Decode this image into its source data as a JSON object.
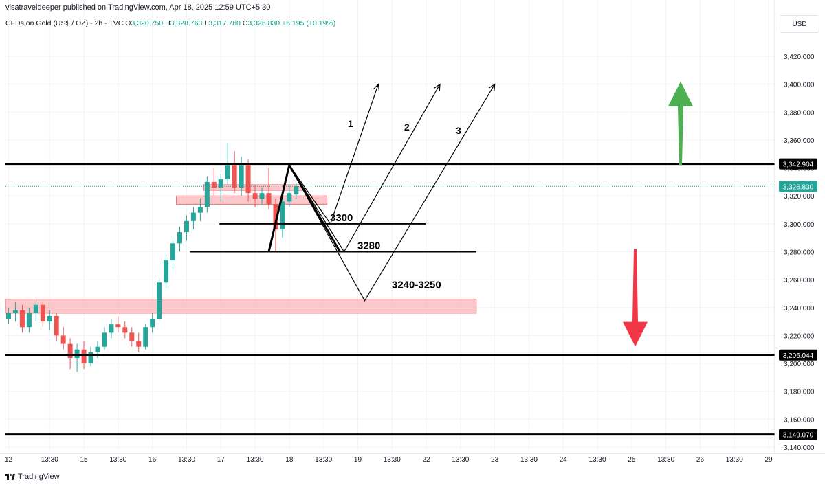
{
  "header": {
    "published_by": "visatraveldeeper published on TradingView.com, Apr 18, 2025 12:59 UTC+5:30"
  },
  "symbol": {
    "name": "CFDs on Gold (US$ / OZ) · 2h · TVC",
    "open_label": "O",
    "open": "3,320.750",
    "high_label": "H",
    "high": "3,328.763",
    "low_label": "L",
    "low": "3,317.760",
    "close_label": "C",
    "close": "3,326.830",
    "change": "+6.195 (+0.19%)"
  },
  "currency": "USD",
  "footer": {
    "brand": "TradingView"
  },
  "colors": {
    "up": "#26a69a",
    "down": "#ef5350",
    "zone_fill": "#f8b4b8",
    "zone_stroke": "#e57373",
    "green_arrow": "#4caf50",
    "red_arrow": "#f23645",
    "last_price": "#26a69a"
  },
  "chart_data": {
    "type": "candlestick",
    "ylim": [
      3132,
      3436
    ],
    "y_ticks": [
      3140,
      3160,
      3180,
      3200,
      3220,
      3240,
      3260,
      3280,
      3300,
      3320,
      3340,
      3360,
      3380,
      3400,
      3420
    ],
    "y_tick_labels": [
      "3,140.000",
      "3,160.000",
      "3,180.000",
      "3,200.000",
      "3,220.000",
      "3,240.000",
      "3,260.000",
      "3,280.000",
      "3,300.000",
      "3,320.000",
      "3,340.000",
      "3,360.000",
      "3,380.000",
      "3,400.000",
      "3,420.000"
    ],
    "x_ticks": [
      {
        "i": 0,
        "label": "12"
      },
      {
        "i": 6,
        "label": "13:30"
      },
      {
        "i": 11,
        "label": "15"
      },
      {
        "i": 16,
        "label": "13:30"
      },
      {
        "i": 21,
        "label": "16"
      },
      {
        "i": 26,
        "label": "13:30"
      },
      {
        "i": 31,
        "label": "17"
      },
      {
        "i": 36,
        "label": "13:30"
      },
      {
        "i": 41,
        "label": "18"
      },
      {
        "i": 46,
        "label": "13:30"
      },
      {
        "i": 51,
        "label": "19"
      },
      {
        "i": 56,
        "label": "13:30"
      },
      {
        "i": 61,
        "label": "22"
      },
      {
        "i": 66,
        "label": "13:30"
      },
      {
        "i": 71,
        "label": "23"
      },
      {
        "i": 76,
        "label": "13:30"
      },
      {
        "i": 81,
        "label": "24"
      },
      {
        "i": 86,
        "label": "13:30"
      },
      {
        "i": 91,
        "label": "25"
      },
      {
        "i": 96,
        "label": "13:30"
      },
      {
        "i": 101,
        "label": "26"
      },
      {
        "i": 106,
        "label": "13:30"
      },
      {
        "i": 111,
        "label": "29"
      }
    ],
    "candles": [
      [
        3232,
        3240,
        3228,
        3236
      ],
      [
        3236,
        3244,
        3230,
        3238
      ],
      [
        3238,
        3242,
        3222,
        3226
      ],
      [
        3226,
        3240,
        3222,
        3236
      ],
      [
        3236,
        3245,
        3230,
        3242
      ],
      [
        3242,
        3244,
        3226,
        3230
      ],
      [
        3230,
        3238,
        3224,
        3234
      ],
      [
        3234,
        3236,
        3216,
        3220
      ],
      [
        3220,
        3226,
        3210,
        3214
      ],
      [
        3214,
        3218,
        3196,
        3204
      ],
      [
        3204,
        3214,
        3194,
        3210
      ],
      [
        3210,
        3216,
        3196,
        3200
      ],
      [
        3200,
        3212,
        3198,
        3208
      ],
      [
        3208,
        3216,
        3204,
        3212
      ],
      [
        3212,
        3226,
        3210,
        3222
      ],
      [
        3222,
        3232,
        3218,
        3228
      ],
      [
        3228,
        3234,
        3222,
        3226
      ],
      [
        3226,
        3230,
        3218,
        3222
      ],
      [
        3222,
        3226,
        3212,
        3216
      ],
      [
        3216,
        3222,
        3208,
        3212
      ],
      [
        3212,
        3228,
        3210,
        3226
      ],
      [
        3226,
        3236,
        3222,
        3232
      ],
      [
        3232,
        3262,
        3230,
        3258
      ],
      [
        3258,
        3278,
        3254,
        3274
      ],
      [
        3274,
        3290,
        3268,
        3286
      ],
      [
        3286,
        3298,
        3280,
        3294
      ],
      [
        3294,
        3306,
        3288,
        3302
      ],
      [
        3302,
        3312,
        3296,
        3308
      ],
      [
        3308,
        3318,
        3302,
        3312
      ],
      [
        3312,
        3334,
        3308,
        3330
      ],
      [
        3330,
        3340,
        3320,
        3326
      ],
      [
        3326,
        3336,
        3316,
        3332
      ],
      [
        3332,
        3358,
        3328,
        3342
      ],
      [
        3342,
        3352,
        3322,
        3326
      ],
      [
        3326,
        3348,
        3320,
        3342
      ],
      [
        3342,
        3346,
        3316,
        3322
      ],
      [
        3322,
        3328,
        3312,
        3318
      ],
      [
        3318,
        3326,
        3314,
        3322
      ],
      [
        3322,
        3340,
        3310,
        3314
      ],
      [
        3314,
        3318,
        3280,
        3296
      ],
      [
        3296,
        3320,
        3290,
        3316
      ],
      [
        3316,
        3328,
        3312,
        3322
      ],
      [
        3321,
        3329,
        3318,
        3327
      ]
    ],
    "horizontal_lines": [
      {
        "value": 3342.904,
        "label": "3,342.904"
      },
      {
        "value": 3206.044,
        "label": "3,206.044"
      },
      {
        "value": 3149.07,
        "label": "3,149.070"
      }
    ],
    "last_price": {
      "value": 3326.83,
      "label": "3,326.830"
    },
    "levels": [
      {
        "value": 3300,
        "label": "3300"
      },
      {
        "value": 3280,
        "label": "3280"
      },
      {
        "value": 3245,
        "label": "3240-3250"
      }
    ],
    "zones": [
      {
        "from": 3236,
        "to": 3246
      },
      {
        "from": 3314,
        "to": 3320
      },
      {
        "from": 3324,
        "to": 3328
      }
    ],
    "scenarios": [
      {
        "label": "1",
        "path": [
          [
            41,
            3342
          ],
          [
            47,
            3300
          ],
          [
            54,
            3400
          ]
        ]
      },
      {
        "label": "2",
        "path": [
          [
            41,
            3342
          ],
          [
            49,
            3280
          ],
          [
            63,
            3400
          ]
        ]
      },
      {
        "label": "3",
        "path": [
          [
            41,
            3342
          ],
          [
            52,
            3245
          ],
          [
            71,
            3400
          ]
        ]
      }
    ],
    "outlook_arrows": [
      {
        "direction": "up",
        "from": 3342,
        "to": 3402
      },
      {
        "direction": "down",
        "from": 3282,
        "to": 3212
      }
    ]
  }
}
